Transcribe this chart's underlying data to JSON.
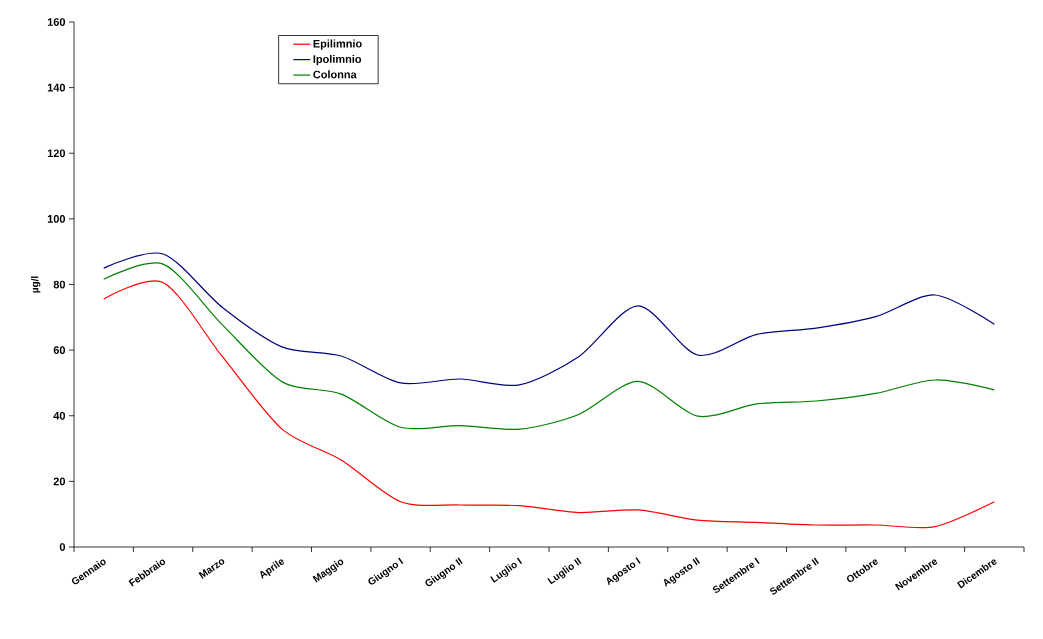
{
  "chart_data": {
    "type": "line",
    "ylabel": "µg/l",
    "categories": [
      "Gennaio",
      "Febbraio",
      "Marzo",
      "Aprile",
      "Maggio",
      "Giugno I",
      "Giugno II",
      "Luglio I",
      "Luglio II",
      "Agosto I",
      "Agosto II",
      "Settembre I",
      "Settembre II",
      "Ottobre",
      "Novembre",
      "Dicembre"
    ],
    "series": [
      {
        "name": "Epilimnio",
        "color": "#ff0000",
        "values": [
          75.6,
          80.6,
          58,
          36,
          26.5,
          13.8,
          12.8,
          12.6,
          10.5,
          11.3,
          8.2,
          7.5,
          6.7,
          6.7,
          6.2,
          13.8
        ]
      },
      {
        "name": "Ipolimnio",
        "color": "#000080",
        "values": [
          85,
          89.3,
          73,
          61,
          58.2,
          50,
          51.2,
          49.4,
          58,
          73.5,
          58.5,
          64.8,
          66.7,
          70.2,
          76.8,
          67.9
        ]
      },
      {
        "name": "Colonna",
        "color": "#008000",
        "values": [
          81.6,
          86.2,
          67.7,
          50.4,
          46.6,
          36.5,
          37,
          35.9,
          40.4,
          50.5,
          39.9,
          43.6,
          44.5,
          46.8,
          50.9,
          47.9
        ]
      }
    ],
    "ylim": [
      0,
      160
    ],
    "yticks": [
      0,
      20,
      40,
      60,
      80,
      100,
      120,
      140,
      160
    ],
    "legend": "top left",
    "grid": false,
    "marker": "none",
    "line_style": "solid"
  }
}
